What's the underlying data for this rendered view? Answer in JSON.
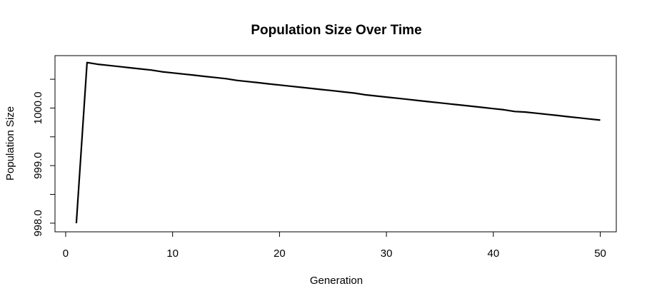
{
  "chart_data": {
    "type": "line",
    "title": "Population Size Over Time",
    "xlabel": "Generation",
    "ylabel": "Population Size",
    "xlim": [
      -1,
      51.5
    ],
    "ylim": [
      997.85,
      1000.91
    ],
    "x_ticks": [
      0,
      10,
      20,
      30,
      40,
      50
    ],
    "x_tick_labels": [
      "0",
      "10",
      "20",
      "30",
      "40",
      "50"
    ],
    "y_ticks": [
      998.0,
      999.0,
      1000.0
    ],
    "y_tick_labels": [
      "998.0",
      "999.0",
      "1000.0"
    ],
    "grid": false,
    "series": [
      {
        "color": "#000000",
        "x": [
          1,
          2,
          3,
          4,
          5,
          6,
          7,
          8,
          9,
          10,
          11,
          12,
          13,
          14,
          15,
          16,
          17,
          18,
          19,
          20,
          21,
          22,
          23,
          24,
          25,
          26,
          27,
          28,
          29,
          30,
          31,
          32,
          33,
          34,
          35,
          36,
          37,
          38,
          39,
          40,
          41,
          42,
          43,
          44,
          45,
          46,
          47,
          48,
          49,
          50
        ],
        "values": [
          998.0,
          1000.79,
          1000.76,
          1000.74,
          1000.72,
          1000.7,
          1000.68,
          1000.66,
          1000.63,
          1000.61,
          1000.59,
          1000.57,
          1000.55,
          1000.53,
          1000.51,
          1000.48,
          1000.46,
          1000.44,
          1000.42,
          1000.4,
          1000.38,
          1000.36,
          1000.34,
          1000.32,
          1000.3,
          1000.28,
          1000.26,
          1000.23,
          1000.21,
          1000.19,
          1000.17,
          1000.15,
          1000.13,
          1000.11,
          1000.09,
          1000.07,
          1000.05,
          1000.03,
          1000.01,
          999.99,
          999.97,
          999.94,
          999.93,
          999.91,
          999.89,
          999.87,
          999.85,
          999.83,
          999.81,
          999.79
        ]
      }
    ]
  }
}
